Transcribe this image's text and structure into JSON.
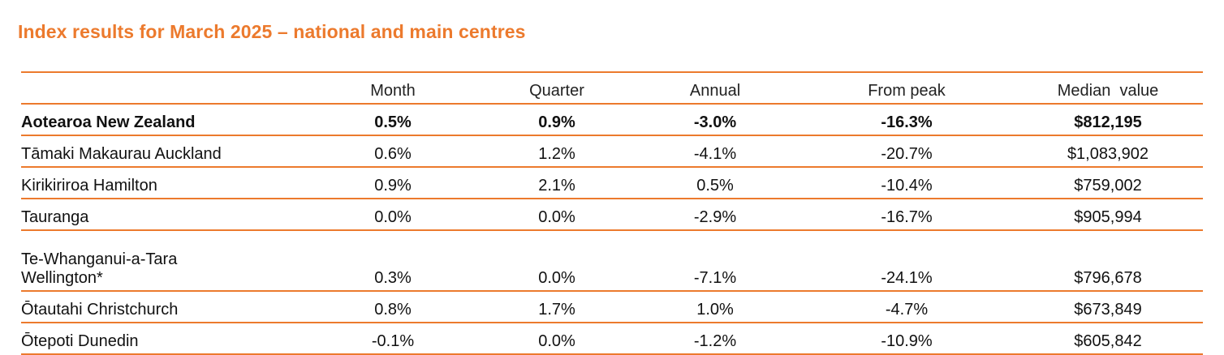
{
  "title": "Index results for March 2025 – national and main centres",
  "columns": [
    "",
    "Month",
    "Quarter",
    "Annual",
    "From peak",
    "Median  value"
  ],
  "rows": [
    {
      "region": "Aotearoa New Zealand",
      "month": "0.5%",
      "quarter": "0.9%",
      "annual": "-3.0%",
      "from_peak": "-16.3%",
      "median": "$812,195",
      "bold": true
    },
    {
      "region": "Tāmaki Makaurau Auckland",
      "month": "0.6%",
      "quarter": "1.2%",
      "annual": "-4.1%",
      "from_peak": "-20.7%",
      "median": "$1,083,902"
    },
    {
      "region": "Kirikiriroa Hamilton",
      "month": "0.9%",
      "quarter": "2.1%",
      "annual": "0.5%",
      "from_peak": "-10.4%",
      "median": "$759,002"
    },
    {
      "region": "Tauranga",
      "month": "0.0%",
      "quarter": "0.0%",
      "annual": "-2.9%",
      "from_peak": "-16.7%",
      "median": "$905,994"
    },
    {
      "region": "Te-Whanganui-a-Tara",
      "region_line2": "Wellington*",
      "month": "0.3%",
      "quarter": "0.0%",
      "annual": "-7.1%",
      "from_peak": "-24.1%",
      "median": "$796,678"
    },
    {
      "region": "Ōtautahi Christchurch",
      "month": "0.8%",
      "quarter": "1.7%",
      "annual": "1.0%",
      "from_peak": "-4.7%",
      "median": "$673,849"
    },
    {
      "region": "Ōtepoti Dunedin",
      "month": "-0.1%",
      "quarter": "0.0%",
      "annual": "-1.2%",
      "from_peak": "-10.9%",
      "median": "$605,842"
    }
  ],
  "colors": {
    "accent": "#ec7a2d",
    "text": "#111111"
  }
}
